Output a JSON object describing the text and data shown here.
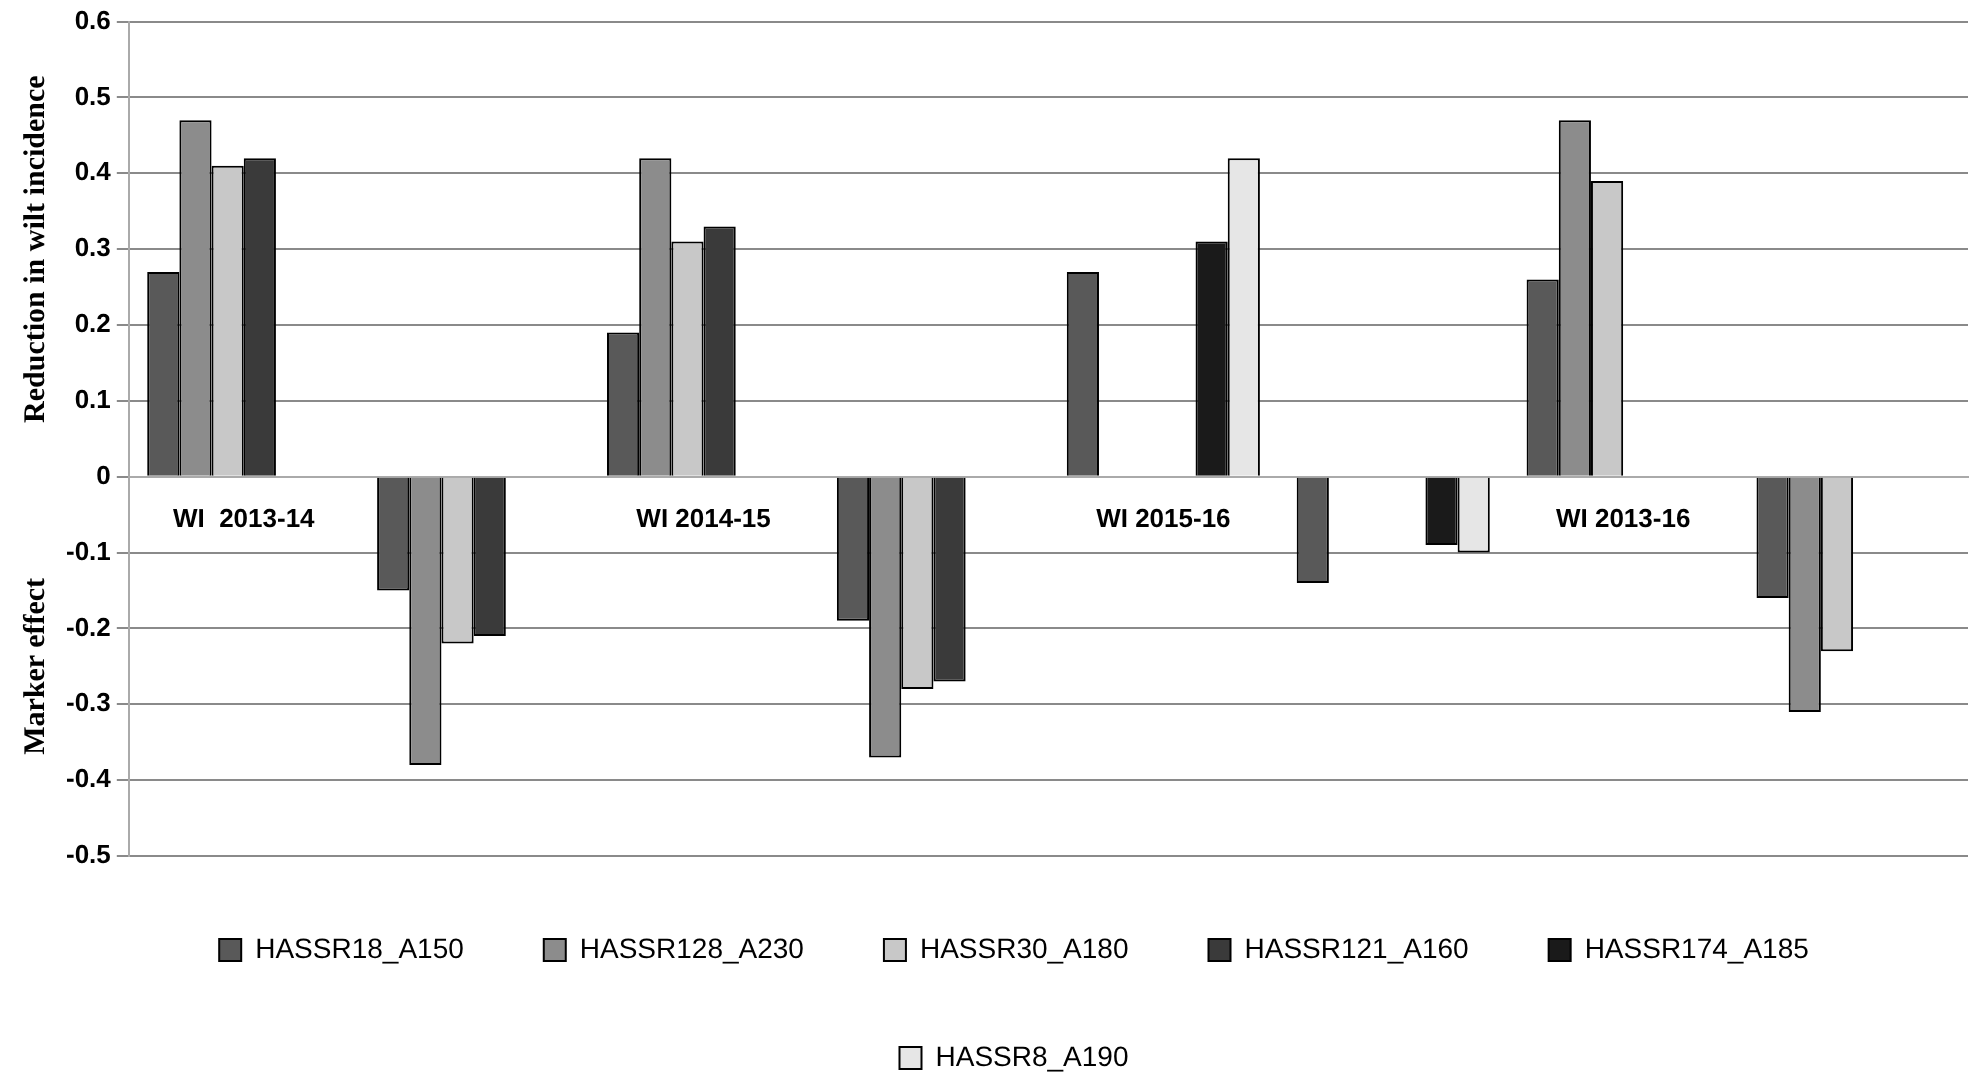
{
  "chart_data": {
    "type": "bar",
    "ylabel": "Reduction in wilt incidence",
    "annotations": [
      "Marker effect"
    ],
    "categories": [
      "WI  2013-14",
      null,
      "WI 2014-15",
      null,
      "WI 2015-16",
      null,
      "WI 2013-16",
      null
    ],
    "series": [
      {
        "name": "HASSR18_A150",
        "color": "#595959",
        "values": [
          0.27,
          -0.15,
          0.19,
          -0.19,
          0.27,
          -0.14,
          0.26,
          -0.16
        ]
      },
      {
        "name": "HASSR128_A230",
        "color": "#8c8c8c",
        "values": [
          0.47,
          -0.38,
          0.42,
          -0.37,
          null,
          null,
          0.47,
          -0.31
        ]
      },
      {
        "name": "HASSR30_A180",
        "color": "#c8c8c8",
        "values": [
          0.41,
          -0.22,
          0.31,
          -0.28,
          null,
          null,
          0.39,
          -0.23
        ]
      },
      {
        "name": "HASSR121_A160",
        "color": "#3a3a3a",
        "values": [
          0.42,
          -0.21,
          0.33,
          -0.27,
          null,
          null,
          null,
          null
        ]
      },
      {
        "name": "HASSR174_A185",
        "color": "#1a1a1a",
        "values": [
          null,
          null,
          null,
          null,
          0.31,
          -0.09,
          null,
          null
        ]
      },
      {
        "name": "HASSR8_A190",
        "color": "#e6e6e6",
        "values": [
          null,
          null,
          null,
          null,
          0.42,
          -0.1,
          null,
          null
        ]
      }
    ],
    "ylim": [
      -0.5,
      0.6
    ],
    "yticks": [
      -0.5,
      -0.4,
      -0.3,
      -0.2,
      -0.1,
      0,
      0.1,
      0.2,
      0.3,
      0.4,
      0.5,
      0.6
    ],
    "grid": "y",
    "legend": "bottom"
  }
}
